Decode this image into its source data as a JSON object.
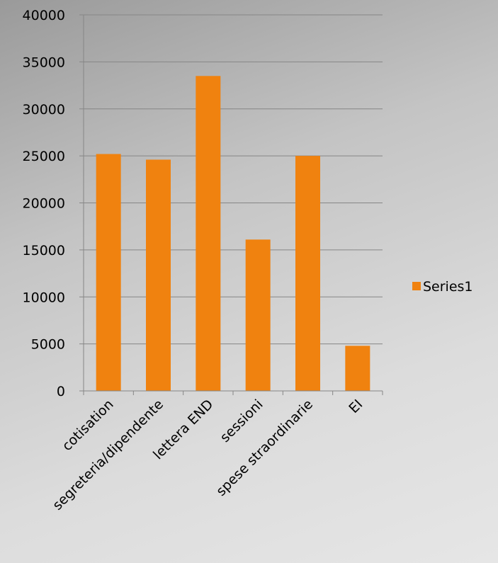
{
  "chart_data": {
    "type": "bar",
    "categories": [
      "cotisation",
      "segreteria/dipendente",
      "lettera END",
      "sessioni",
      "spese straordinarie",
      "EI"
    ],
    "series": [
      {
        "name": "Series1",
        "values": [
          25200,
          24600,
          33500,
          16100,
          25000,
          4800
        ]
      }
    ],
    "ylim": [
      0,
      40000
    ],
    "yticks": [
      0,
      5000,
      10000,
      15000,
      20000,
      25000,
      30000,
      35000,
      40000
    ],
    "grid": true,
    "legend": "right",
    "colors": {
      "bar": "#f0820f",
      "gridline": "#868686",
      "axis": "#868686"
    }
  }
}
